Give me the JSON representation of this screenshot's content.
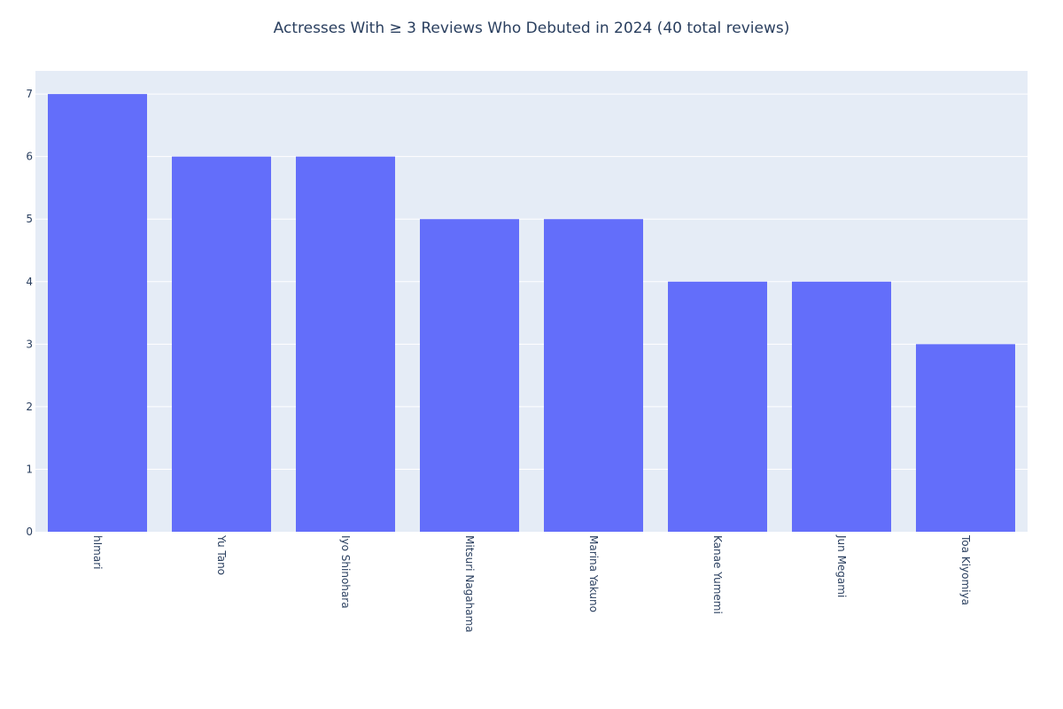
{
  "chart_data": {
    "type": "bar",
    "title": "Actresses With ≥ 3 Reviews Who Debuted in 2024 (40 total reviews)",
    "xlabel": "",
    "ylabel": "",
    "categories": [
      "hImari",
      "Yu Tano",
      "Iyo Shinohara",
      "Mitsuri Nagahama",
      "Marina Yakuno",
      "Kanae Yumemi",
      "Jun Megami",
      "Toa Kiyomiya"
    ],
    "values": [
      7,
      6,
      6,
      5,
      5,
      4,
      4,
      3
    ],
    "ylim": [
      0,
      7.37
    ],
    "yticks": [
      0,
      1,
      2,
      3,
      4,
      5,
      6,
      7
    ],
    "grid": true,
    "bar_color": "#636efa",
    "plot_bg": "#e5ecf6"
  }
}
